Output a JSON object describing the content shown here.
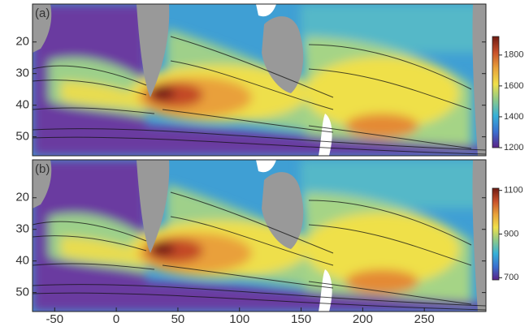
{
  "chart_data": [
    {
      "type": "contour",
      "panel_label": "(a)",
      "xlim": [
        -68,
        300
      ],
      "ylim": [
        56,
        8
      ],
      "yticks": [
        20,
        30,
        40,
        50
      ],
      "clim": [
        1200,
        1920
      ],
      "cticks": [
        1200,
        1400,
        1600,
        1800
      ],
      "colormap": [
        "#5a2288",
        "#3a6fd0",
        "#36b0d8",
        "#8cc98a",
        "#efe04a",
        "#e9a23a",
        "#c8502a",
        "#6e1a12"
      ]
    },
    {
      "type": "contour",
      "panel_label": "(b)",
      "xlim": [
        -68,
        300
      ],
      "xticks": [
        -50,
        0,
        50,
        100,
        150,
        200,
        250
      ],
      "ylim": [
        56,
        8
      ],
      "yticks": [
        20,
        30,
        40,
        50
      ],
      "clim": [
        690,
        1110
      ],
      "cticks": [
        700,
        900,
        1100
      ],
      "colormap": [
        "#5a2288",
        "#3a6fd0",
        "#36b0d8",
        "#8cc98a",
        "#efe04a",
        "#e9a23a",
        "#c8502a",
        "#6e1a12"
      ]
    }
  ]
}
